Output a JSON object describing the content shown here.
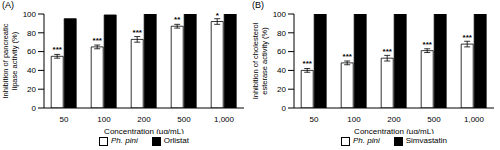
{
  "chart_data": [
    {
      "type": "bar",
      "title": "(A)",
      "x_label": "Concentration (µg/mL)",
      "y_label": "Inhibition of pancreatic lipase activity (%)",
      "categories": [
        "50",
        "100",
        "200",
        "500",
        "1,000"
      ],
      "ylim": [
        0,
        100
      ],
      "yticks": [
        0,
        20,
        40,
        60,
        80,
        100
      ],
      "grid": false,
      "legend": "bottom",
      "series": [
        {
          "name": "Ph. pini",
          "color": "#ffffff",
          "values": [
            55,
            65,
            73,
            87,
            92
          ],
          "errors": [
            2,
            2,
            3,
            2,
            3
          ],
          "annotations": [
            "***",
            "***",
            "***",
            "**",
            "*"
          ]
        },
        {
          "name": "Orlistat",
          "color": "#000000",
          "values": [
            95,
            99,
            100,
            100,
            100
          ]
        }
      ]
    },
    {
      "type": "bar",
      "title": "(B)",
      "x_label": "Concentration (µg/mL)",
      "y_label": "Inhibition of cholesterol esterase activity (%)",
      "categories": [
        "50",
        "100",
        "200",
        "500",
        "1,000"
      ],
      "ylim": [
        0,
        100
      ],
      "yticks": [
        0,
        20,
        40,
        60,
        80,
        100
      ],
      "grid": false,
      "legend": "bottom",
      "series": [
        {
          "name": "Ph. pini",
          "color": "#ffffff",
          "values": [
            40,
            48,
            53,
            61,
            68
          ],
          "errors": [
            2,
            2,
            3,
            2,
            3
          ],
          "annotations": [
            "***",
            "***",
            "***",
            "***",
            "***"
          ]
        },
        {
          "name": "Simvastatin",
          "color": "#000000",
          "values": [
            100,
            100,
            100,
            100,
            100
          ]
        }
      ]
    }
  ]
}
